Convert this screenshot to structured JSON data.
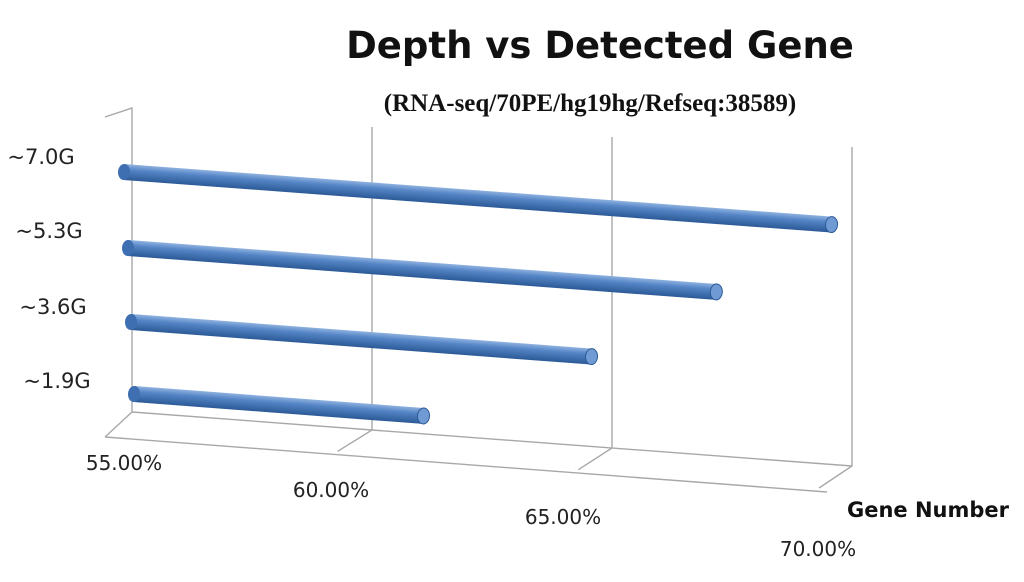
{
  "chart_data": {
    "type": "bar",
    "orientation": "horizontal",
    "style": "3d-cylinder",
    "title": "Depth vs Detected Gene",
    "subtitle": "(RNA-seq/70PE/hg19hg/Refseq:38589)",
    "xlabel": "Gene Number",
    "ylabel": "",
    "categories": [
      "~1.9G",
      "~3.6G",
      "~5.3G",
      "~7.0G"
    ],
    "values": [
      61.1,
      64.6,
      67.2,
      69.6
    ],
    "xlim": [
      55,
      70
    ],
    "x_ticks": [
      "55.00%",
      "60.00%",
      "65.00%",
      "70.00%"
    ],
    "grid": true,
    "bar_color": "#4f81bd"
  }
}
